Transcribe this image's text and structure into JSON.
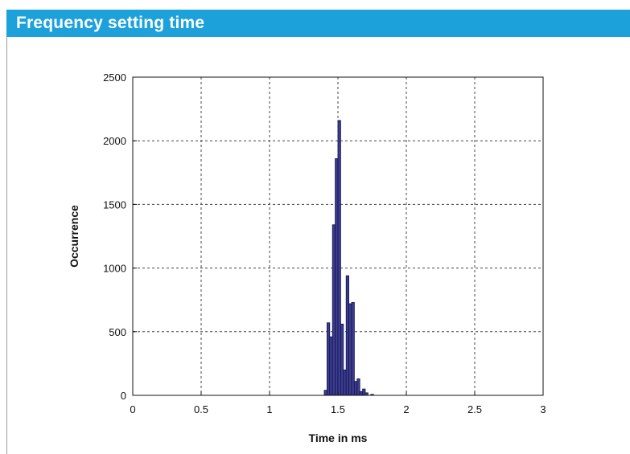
{
  "header": {
    "title": "Frequency setting time"
  },
  "colors": {
    "header_bg": "#1da1db",
    "bar_fill": "#3b3b8f",
    "bar_stroke": "#15154a",
    "grid": "#444444"
  },
  "chart_data": {
    "type": "bar",
    "title": "",
    "xlabel": "Time in ms",
    "ylabel": "Occurrence",
    "xlim": [
      0,
      3
    ],
    "ylim": [
      0,
      2500
    ],
    "xticks": [
      0,
      0.5,
      1,
      1.5,
      2,
      2.5,
      3
    ],
    "xtick_labels": [
      "0",
      "0.5",
      "1",
      "1.5",
      "2",
      "2.5",
      "3"
    ],
    "yticks": [
      0,
      500,
      1000,
      1500,
      2000,
      2500
    ],
    "ytick_labels": [
      "0",
      "500",
      "1000",
      "1500",
      "2000",
      "2500"
    ],
    "grid": true,
    "bin_width": 0.02,
    "bins": [
      {
        "x": 1.41,
        "y": 40
      },
      {
        "x": 1.43,
        "y": 570
      },
      {
        "x": 1.45,
        "y": 460
      },
      {
        "x": 1.47,
        "y": 1340
      },
      {
        "x": 1.49,
        "y": 1860
      },
      {
        "x": 1.51,
        "y": 2160
      },
      {
        "x": 1.53,
        "y": 560
      },
      {
        "x": 1.55,
        "y": 200
      },
      {
        "x": 1.57,
        "y": 940
      },
      {
        "x": 1.59,
        "y": 720
      },
      {
        "x": 1.61,
        "y": 730
      },
      {
        "x": 1.63,
        "y": 110
      },
      {
        "x": 1.65,
        "y": 130
      },
      {
        "x": 1.67,
        "y": 30
      },
      {
        "x": 1.69,
        "y": 50
      },
      {
        "x": 1.71,
        "y": 20
      },
      {
        "x": 1.75,
        "y": 8
      }
    ]
  }
}
